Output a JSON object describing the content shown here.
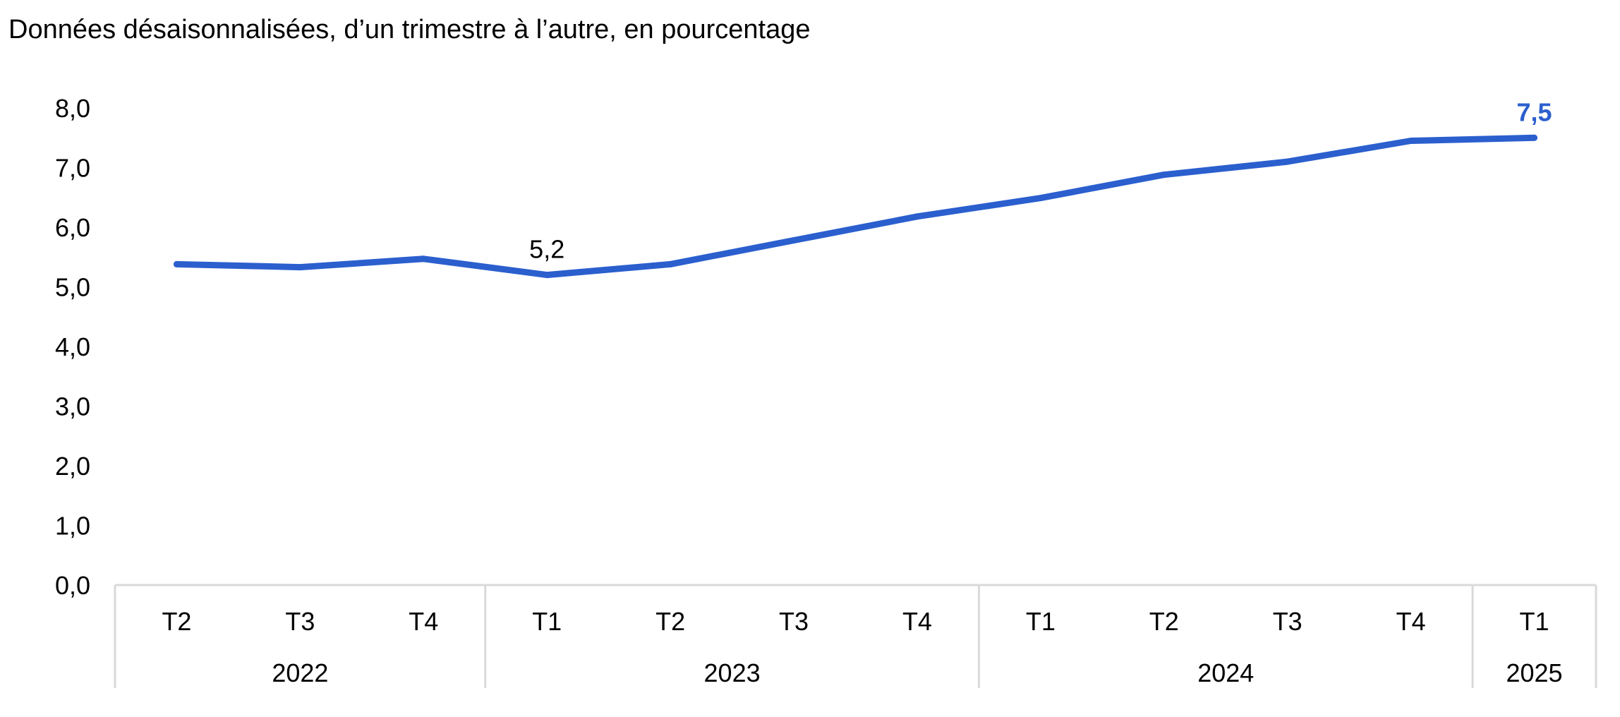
{
  "chart_data": {
    "type": "line",
    "title": "Données désaisonnalisées, d’un trimestre à l’autre, en pourcentage",
    "xlabel": "",
    "ylabel": "",
    "ylim": [
      0,
      8
    ],
    "y_ticks": [
      "0,0",
      "1,0",
      "2,0",
      "3,0",
      "4,0",
      "5,0",
      "6,0",
      "7,0",
      "8,0"
    ],
    "grid": false,
    "categories": [
      "T2",
      "T3",
      "T4",
      "T1",
      "T2",
      "T3",
      "T4",
      "T1",
      "T2",
      "T3",
      "T4",
      "T1"
    ],
    "years": [
      {
        "label": "2022",
        "count": 3
      },
      {
        "label": "2023",
        "count": 4
      },
      {
        "label": "2024",
        "count": 4
      },
      {
        "label": "2025",
        "count": 1
      }
    ],
    "series": [
      {
        "values": [
          5.38,
          5.33,
          5.47,
          5.2,
          5.38,
          5.78,
          6.18,
          6.49,
          6.88,
          7.1,
          7.45,
          7.5
        ],
        "color": "#2b5fce"
      }
    ],
    "annotations": [
      {
        "index": 3,
        "text": "5,2",
        "color": "#000000",
        "bold": false
      },
      {
        "index": 11,
        "text": "7,5",
        "color": "#2b5fce",
        "bold": true
      }
    ],
    "axis_color": "#d9d9d9"
  }
}
